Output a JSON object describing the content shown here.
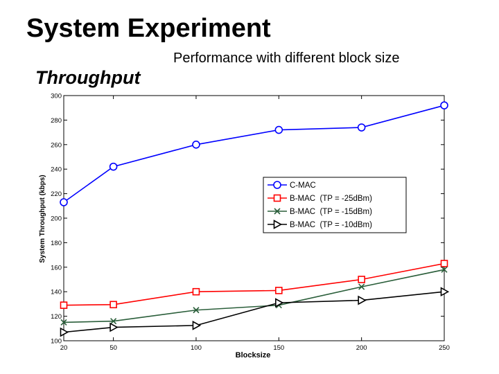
{
  "slide": {
    "title": "System Experiment",
    "subtitle": "Performance with different block size",
    "section": "Throughput"
  },
  "chart_data": {
    "type": "line",
    "xlabel": "Blocksize",
    "ylabel": "System Throughput (kbps)",
    "x": [
      20,
      50,
      100,
      150,
      200,
      250
    ],
    "xlim": [
      20,
      250
    ],
    "ylim": [
      100,
      300
    ],
    "xticks": [
      20,
      50,
      100,
      150,
      200,
      250
    ],
    "yticks": [
      100,
      120,
      140,
      160,
      180,
      200,
      220,
      240,
      260,
      280,
      300
    ],
    "grid": false,
    "legend_position": "center-right",
    "series": [
      {
        "name": "C-MAC",
        "marker": "circle",
        "color": "#0000ff",
        "values": [
          213,
          242,
          260,
          272,
          274,
          292
        ]
      },
      {
        "name": "B-MAC  (TP = -25dBm)",
        "marker": "square",
        "color": "#ff0000",
        "values": [
          129,
          129.5,
          140,
          141,
          150,
          163
        ]
      },
      {
        "name": "B-MAC  (TP = -15dBm)",
        "marker": "x",
        "color": "#2a5e3a",
        "values": [
          115,
          116,
          125,
          129,
          144,
          158
        ]
      },
      {
        "name": "B-MAC  (TP = -10dBm)",
        "marker": "triangle-right",
        "color": "#000000",
        "values": [
          107,
          111,
          112.5,
          131,
          133,
          140
        ]
      }
    ]
  }
}
